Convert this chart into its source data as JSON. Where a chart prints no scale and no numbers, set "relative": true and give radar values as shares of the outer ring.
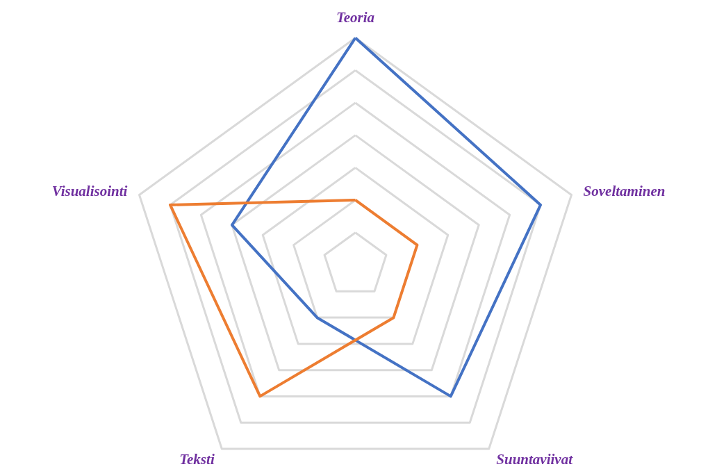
{
  "chart_data": {
    "type": "radar",
    "relative": true,
    "grid": true,
    "marker": "none",
    "line_style": "solid",
    "categories": [
      "Teoria",
      "Soveltaminen",
      "Suuntaviivat",
      "Teksti",
      "Visualisointi"
    ],
    "series": [
      {
        "color": "#4472c4",
        "values": [
          1.0,
          0.857,
          0.714,
          0.286,
          0.571
        ]
      },
      {
        "color": "#ed7d31",
        "values": [
          0.286,
          0.286,
          0.286,
          0.714,
          0.857
        ]
      }
    ]
  }
}
